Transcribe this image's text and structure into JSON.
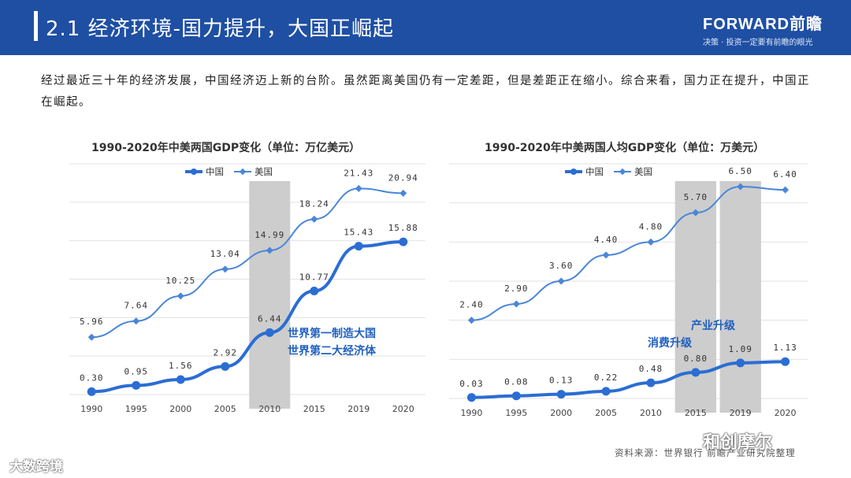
{
  "header": {
    "title": "2.1 经济环境-国力提升，大国正崛起",
    "brand": "FORWARD前瞻",
    "slogan": "决策 · 投资一定要有前瞻的眼光"
  },
  "intro": "经过最近三十年的经济发展，中国经济迈上新的台阶。虽然距离美国仍有一定差距，但是差距正在缩小。综合来看，国力正在提升，中国正在崛起。",
  "chart_data": [
    {
      "type": "line",
      "title": "1990-2020年中美两国GDP变化（单位：万亿美元）",
      "categories": [
        "1990",
        "1995",
        "2000",
        "2005",
        "2010",
        "2015",
        "2019",
        "2020"
      ],
      "series": [
        {
          "name": "中国",
          "values": [
            0.3,
            0.95,
            1.56,
            2.92,
            6.44,
            10.77,
            15.43,
            15.88
          ],
          "labels": [
            "0.30",
            "0.95",
            "1.56",
            "2.92",
            "6.44",
            "10.77",
            "15.43",
            "15.88"
          ],
          "color": "#2b6dd3"
        },
        {
          "name": "美国",
          "values": [
            5.96,
            7.64,
            10.25,
            13.04,
            14.99,
            18.24,
            21.43,
            20.94
          ],
          "labels": [
            "5.96",
            "7.64",
            "10.25",
            "13.04",
            "14.99",
            "18.24",
            "21.43",
            "20.94"
          ],
          "color": "#4a86d8"
        }
      ],
      "highlight_categories": [
        "2010"
      ],
      "annotations": [
        "世界第一制造大国",
        "世界第二大经济体"
      ],
      "ylim": [
        0,
        24
      ]
    },
    {
      "type": "line",
      "title": "1990-2020年中美两国人均GDP变化（单位：万美元）",
      "categories": [
        "1990",
        "1995",
        "2000",
        "2005",
        "2010",
        "2015",
        "2019",
        "2020"
      ],
      "series": [
        {
          "name": "中国",
          "values": [
            0.03,
            0.08,
            0.13,
            0.22,
            0.48,
            0.8,
            1.09,
            1.13
          ],
          "labels": [
            "0.03",
            "0.08",
            "0.13",
            "0.22",
            "0.48",
            "0.80",
            "1.09",
            "1.13"
          ],
          "color": "#2b6dd3"
        },
        {
          "name": "美国",
          "values": [
            2.4,
            2.9,
            3.6,
            4.4,
            4.8,
            5.7,
            6.5,
            6.4
          ],
          "labels": [
            "2.40",
            "2.90",
            "3.60",
            "4.40",
            "4.80",
            "5.70",
            "6.50",
            "6.40"
          ],
          "color": "#4a86d8"
        }
      ],
      "highlight_categories": [
        "2015",
        "2019"
      ],
      "annotations": [
        "消费升级",
        "产业升级"
      ],
      "ylim": [
        0,
        7.2
      ]
    }
  ],
  "source": "资料来源：世界银行 前瞻产业研究院整理",
  "watermark_left": "大数跨境",
  "watermark_right": "和创摩尔"
}
